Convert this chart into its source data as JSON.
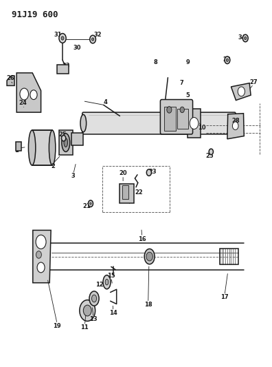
{
  "title": "91J19 600",
  "bg_color": "#ffffff",
  "line_color": "#1a1a1a",
  "text_color": "#1a1a1a",
  "fig_width": 3.96,
  "fig_height": 5.33,
  "dpi": 100
}
